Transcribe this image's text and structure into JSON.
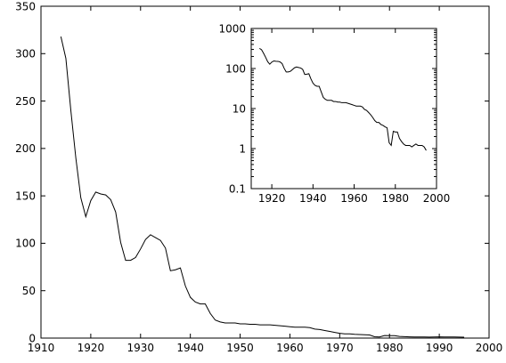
{
  "chart_data": [
    {
      "type": "line",
      "title": "",
      "xlabel": "",
      "ylabel": "",
      "xlim": [
        1910,
        2000
      ],
      "ylim": [
        0,
        350
      ],
      "xticks": [
        "1910",
        "1920",
        "1930",
        "1940",
        "1950",
        "1960",
        "1970",
        "1980",
        "1990",
        "2000"
      ],
      "yticks": [
        "0",
        "50",
        "100",
        "150",
        "200",
        "250",
        "300",
        "350"
      ],
      "grid": false,
      "legend": "none",
      "line_color": "#000000",
      "series": [
        {
          "x": [
            1914,
            1915,
            1916,
            1917,
            1918,
            1919,
            1920,
            1921,
            1922,
            1923,
            1924,
            1925,
            1926,
            1927,
            1928,
            1929,
            1930,
            1931,
            1932,
            1933,
            1934,
            1935,
            1936,
            1937,
            1938,
            1939,
            1940,
            1941,
            1942,
            1943,
            1944,
            1945,
            1946,
            1947,
            1948,
            1949,
            1950,
            1951,
            1952,
            1953,
            1954,
            1955,
            1956,
            1957,
            1958,
            1959,
            1960,
            1961,
            1962,
            1963,
            1964,
            1965,
            1966,
            1967,
            1968,
            1969,
            1970,
            1971,
            1972,
            1973,
            1974,
            1975,
            1976,
            1977,
            1978,
            1979,
            1980,
            1981,
            1982,
            1983,
            1984,
            1985,
            1986,
            1987,
            1988,
            1989,
            1990,
            1991,
            1992,
            1993,
            1994,
            1995
          ],
          "y": [
            318,
            295,
            240,
            190,
            148,
            128,
            145,
            154,
            152,
            151,
            146,
            133,
            101,
            82,
            82,
            85,
            94,
            104,
            109,
            106,
            103,
            95,
            71,
            72,
            74,
            55,
            43,
            38,
            36,
            36,
            26,
            19,
            17,
            16,
            16,
            16,
            15,
            15,
            14.5,
            14.5,
            14,
            14,
            14,
            13.5,
            13,
            12.5,
            12,
            11.5,
            11.5,
            11.5,
            11,
            9.5,
            9,
            8,
            7,
            6,
            5,
            4.5,
            4.5,
            4,
            3.8,
            3.5,
            3.3,
            1.4,
            1.2,
            2.7,
            2.6,
            2.6,
            1.8,
            1.5,
            1.3,
            1.2,
            1.2,
            1.2,
            1.1,
            1.2,
            1.3,
            1.2,
            1.2,
            1.2,
            1.1,
            0.9
          ]
        }
      ]
    },
    {
      "type": "line",
      "title": "",
      "xlabel": "",
      "ylabel": "",
      "xlim": [
        1910,
        2000
      ],
      "ylim": [
        0.1,
        1000
      ],
      "yscale": "log",
      "xticks": [
        "1920",
        "1940",
        "1960",
        "1980",
        "2000"
      ],
      "yticks": [
        "0.1",
        "1",
        "10",
        "100",
        "1000"
      ],
      "grid": false,
      "legend": "none",
      "line_color": "#000000",
      "series_source": "same data as main chart"
    }
  ]
}
